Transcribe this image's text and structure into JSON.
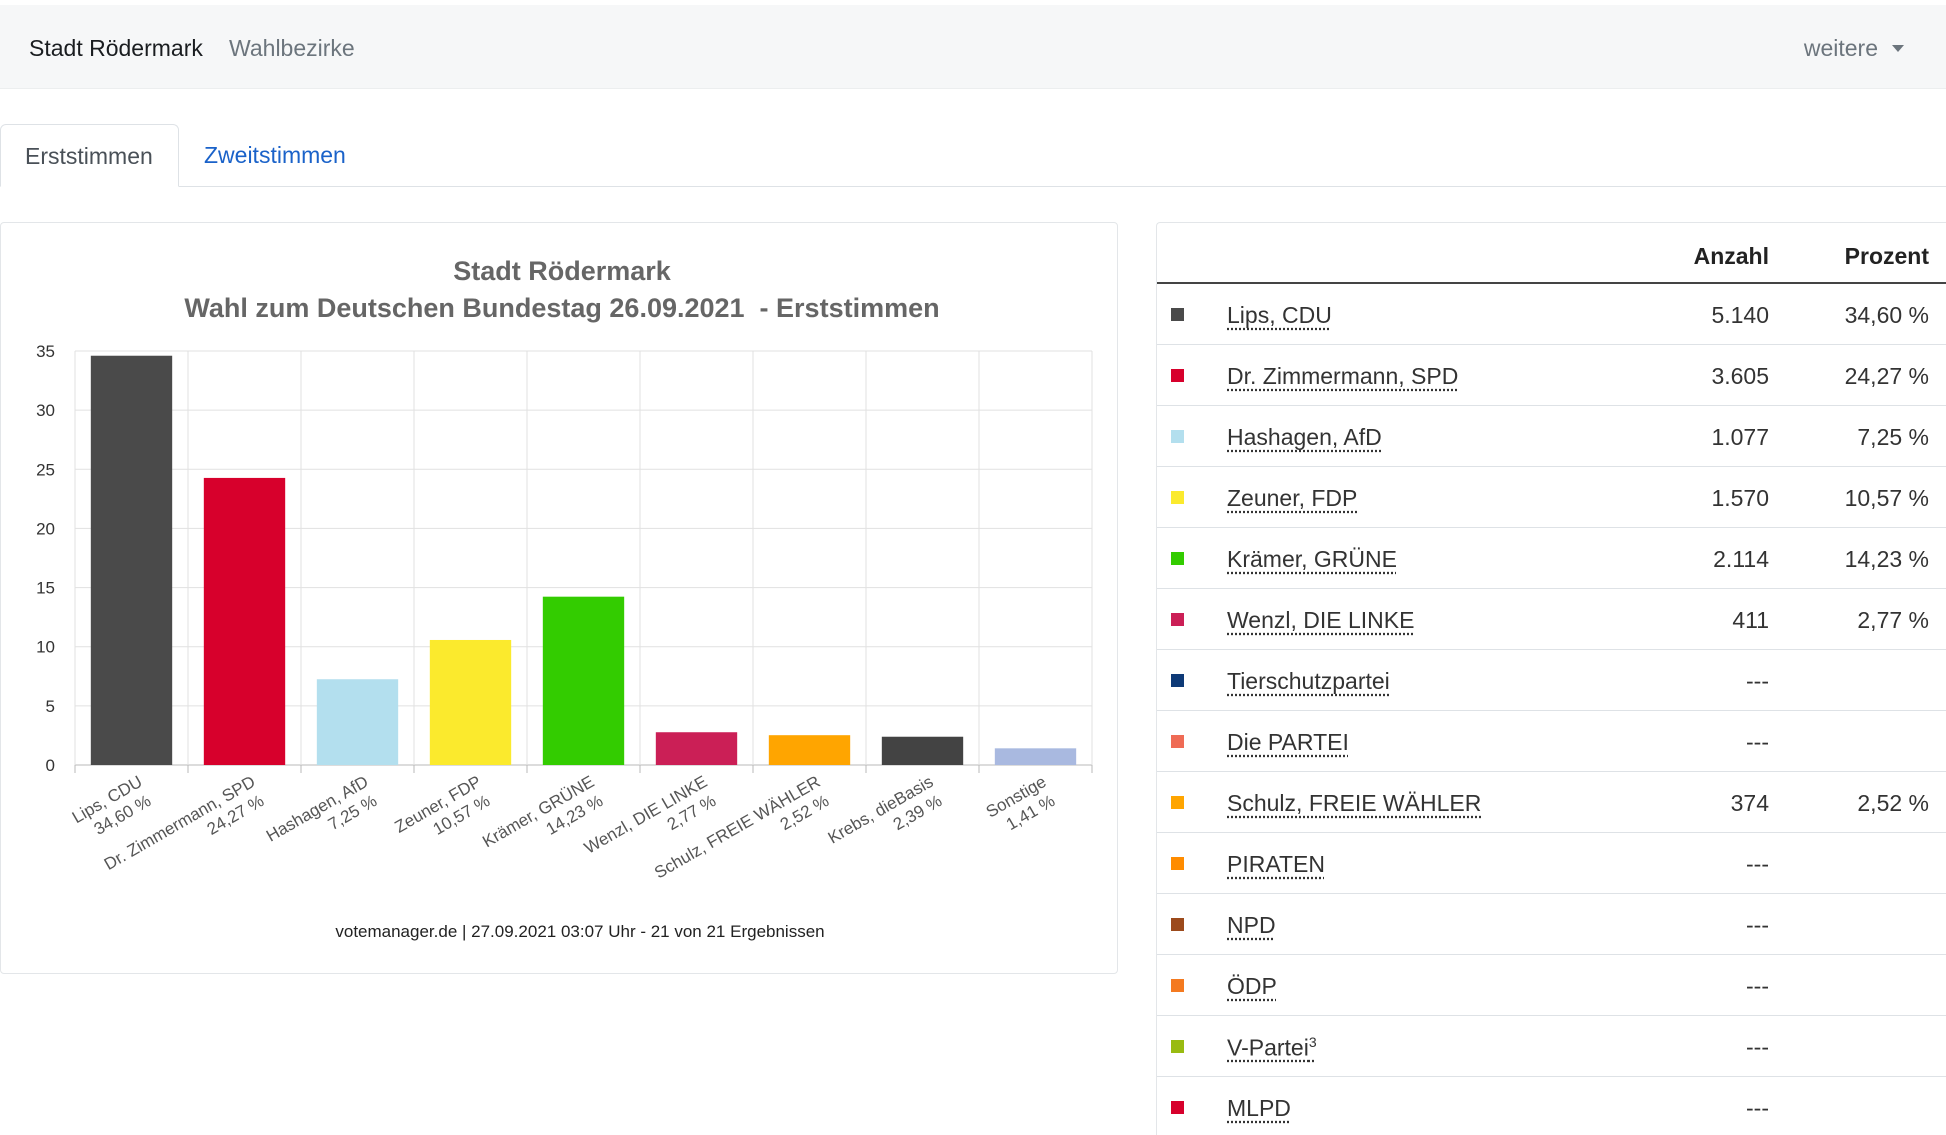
{
  "navbar": {
    "brand": "Stadt Rödermark",
    "link": "Wahlbezirke",
    "more": "weitere"
  },
  "tabs": [
    {
      "label": "Erststimmen",
      "active": true
    },
    {
      "label": "Zweitstimmen",
      "active": false
    }
  ],
  "chart_data": {
    "type": "bar",
    "title": "Stadt Rödermark",
    "subtitle": "Wahl zum Deutschen Bundestag 26.09.2021  - Erststimmen",
    "categories": [
      "Lips, CDU",
      "Dr. Zimmermann, SPD",
      "Hashagen, AfD",
      "Zeuner, FDP",
      "Krämer, GRÜNE",
      "Wenzl, DIE LINKE",
      "Schulz, FREIE WÄHLER",
      "Krebs, dieBasis",
      "Sonstige"
    ],
    "value_labels": [
      "34,60 %",
      "24,27 %",
      "7,25 %",
      "10,57 %",
      "14,23 %",
      "2,77 %",
      "2,52 %",
      "2,39 %",
      "1,41 %"
    ],
    "values": [
      34.6,
      24.27,
      7.25,
      10.57,
      14.23,
      2.77,
      2.52,
      2.39,
      1.41
    ],
    "colors": [
      "#4a4a4a",
      "#d7002c",
      "#b3dfee",
      "#fbea2d",
      "#33cc00",
      "#cb1f56",
      "#ffa500",
      "#434343",
      "#a9b9e0"
    ],
    "ylim": [
      0,
      35
    ],
    "yticks": [
      "0",
      "5",
      "10",
      "15",
      "20",
      "25",
      "30",
      "35"
    ],
    "grid": true,
    "footer": "votemanager.de | 27.09.2021 03:07 Uhr - 21 von 21 Ergebnissen"
  },
  "table": {
    "headers": {
      "count": "Anzahl",
      "percent": "Prozent"
    },
    "rows": [
      {
        "name": "Lips, CDU",
        "count": "5.140",
        "percent": "34,60 %",
        "color": "#4a4a4a"
      },
      {
        "name": "Dr. Zimmermann, SPD",
        "count": "3.605",
        "percent": "24,27 %",
        "color": "#d7002c"
      },
      {
        "name": "Hashagen, AfD",
        "count": "1.077",
        "percent": "7,25 %",
        "color": "#b3dfee"
      },
      {
        "name": "Zeuner, FDP",
        "count": "1.570",
        "percent": "10,57 %",
        "color": "#fbea2d"
      },
      {
        "name": "Krämer, GRÜNE",
        "count": "2.114",
        "percent": "14,23 %",
        "color": "#33cc00"
      },
      {
        "name": "Wenzl, DIE LINKE",
        "count": "411",
        "percent": "2,77 %",
        "color": "#cb1f56"
      },
      {
        "name": "Tierschutzpartei",
        "count": "---",
        "percent": "",
        "color": "#0e3a77"
      },
      {
        "name": "Die PARTEI",
        "count": "---",
        "percent": "",
        "color": "#ef6b55"
      },
      {
        "name": "Schulz, FREIE WÄHLER",
        "count": "374",
        "percent": "2,52 %",
        "color": "#ffa500"
      },
      {
        "name": "PIRATEN",
        "count": "---",
        "percent": "",
        "color": "#ff8c00"
      },
      {
        "name": "NPD",
        "count": "---",
        "percent": "",
        "color": "#9c4a1c"
      },
      {
        "name": "ÖDP",
        "count": "---",
        "percent": "",
        "color": "#f47a20"
      },
      {
        "name": "V-Partei",
        "sup": "3",
        "count": "---",
        "percent": "",
        "color": "#99bb11"
      },
      {
        "name": "MLPD",
        "count": "---",
        "percent": "",
        "color": "#d7002c"
      }
    ]
  }
}
